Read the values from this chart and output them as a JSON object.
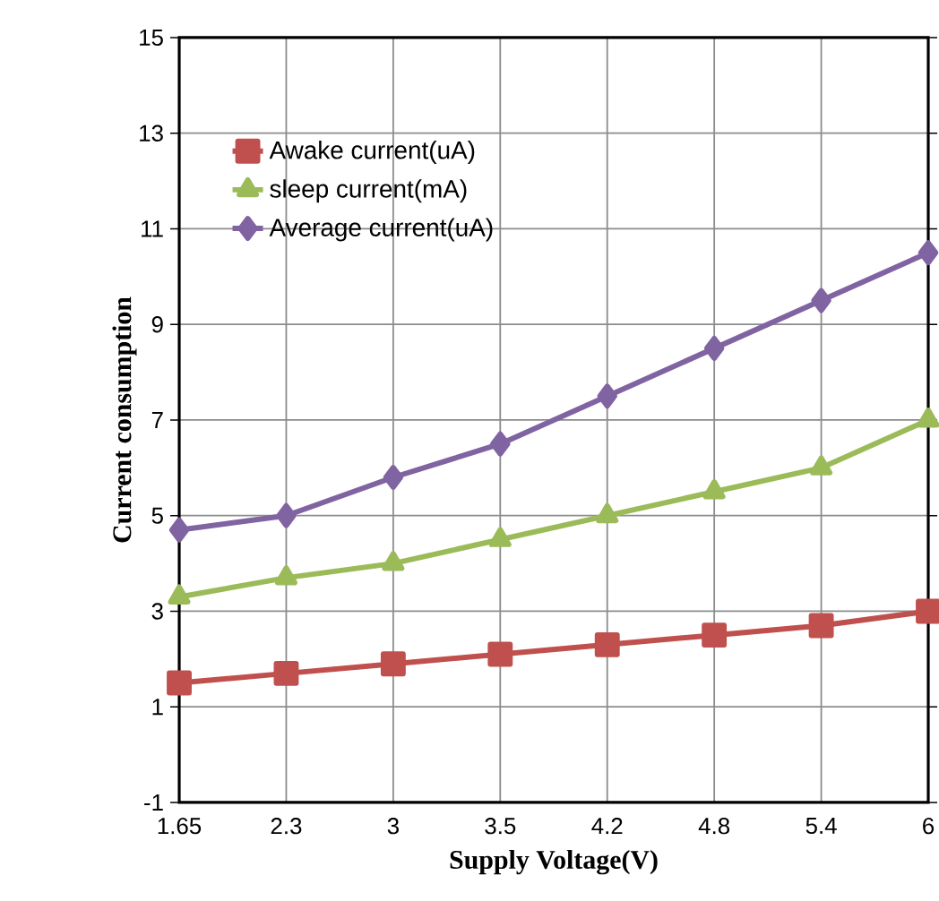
{
  "chart_data": {
    "type": "line",
    "xlabel": "Supply Voltage(V)",
    "ylabel": "Current consumption",
    "categories": [
      "1.65",
      "2.3",
      "3",
      "3.5",
      "4.2",
      "4.8",
      "5.4",
      "6"
    ],
    "series": [
      {
        "name": "Awake current(uA)",
        "color": "#c0504d",
        "marker": "square",
        "values": [
          1.5,
          1.7,
          1.9,
          2.1,
          2.3,
          2.5,
          2.7,
          3.0
        ]
      },
      {
        "name": "sleep current(mA)",
        "color": "#9bbb59",
        "marker": "triangle",
        "values": [
          3.3,
          3.7,
          4.0,
          4.5,
          5.0,
          5.5,
          6.0,
          7.0
        ]
      },
      {
        "name": "Average current(uA)",
        "color": "#8064a2",
        "marker": "diamond",
        "values": [
          4.7,
          5.0,
          5.8,
          6.5,
          7.5,
          8.5,
          9.5,
          10.5
        ]
      }
    ],
    "ylim": [
      -1,
      15
    ],
    "yticks": [
      -1,
      1,
      3,
      5,
      7,
      9,
      11,
      13,
      15
    ],
    "grid": true,
    "legend": "top left",
    "line_style": "solid"
  }
}
